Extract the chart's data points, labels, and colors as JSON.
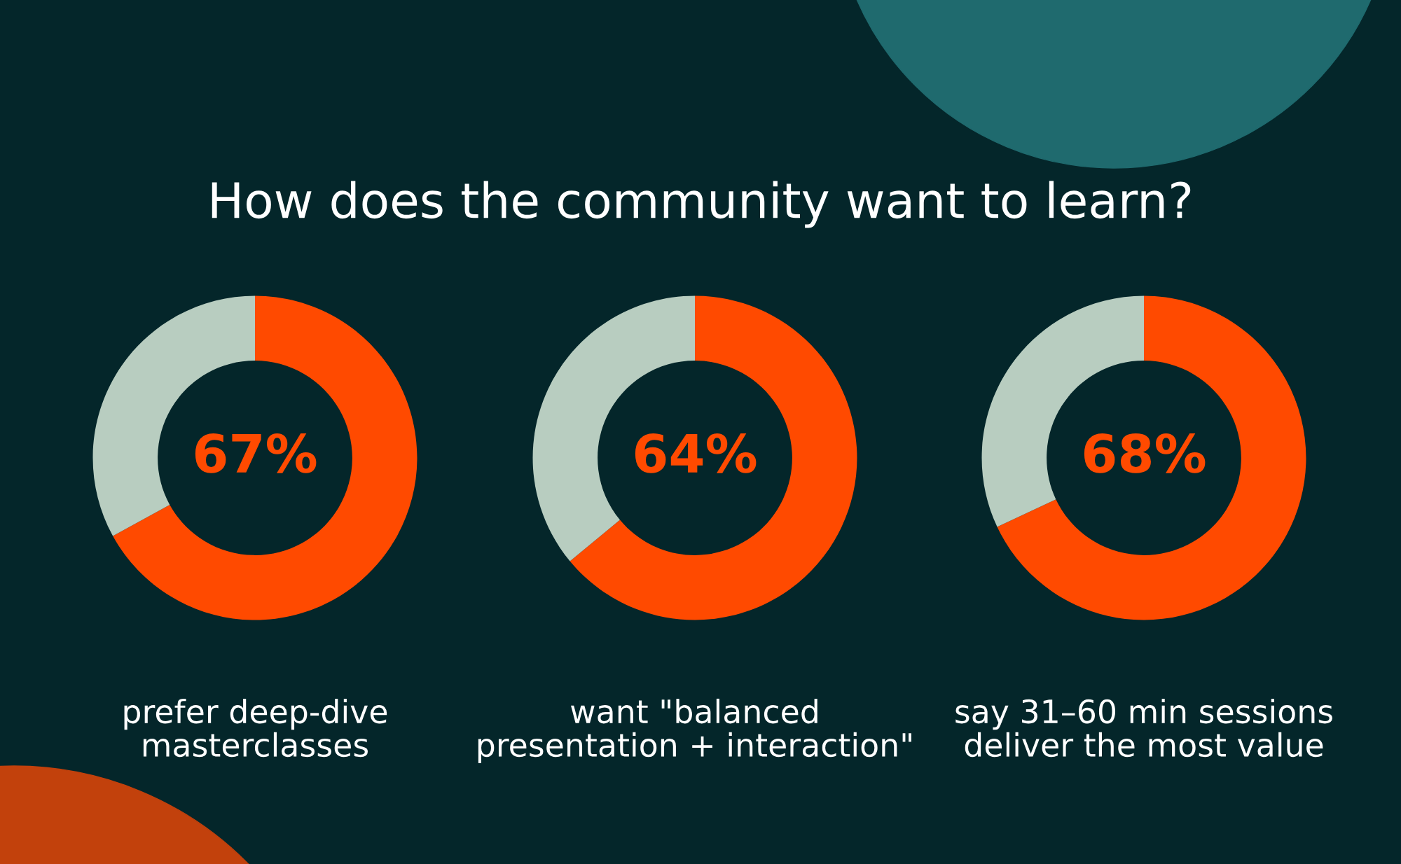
{
  "chart_data": [
    {
      "type": "donut",
      "title": "How does the community want to learn?",
      "categories": [
        null,
        null
      ],
      "values": [
        67,
        33
      ],
      "colors": [
        "#ff4a00",
        "#b8cdc0"
      ],
      "value_labels": [
        "67%",
        null
      ],
      "xlabel": "prefer deep-dive\nmasterclasses"
    },
    {
      "type": "donut",
      "categories": [
        null,
        null
      ],
      "values": [
        64,
        36
      ],
      "colors": [
        "#ff4a00",
        "#b8cdc0"
      ],
      "value_labels": [
        "64%",
        null
      ],
      "xlabel": "want \"balanced\npresentation + interaction\""
    },
    {
      "type": "donut",
      "categories": [
        null,
        null
      ],
      "values": [
        68,
        32
      ],
      "colors": [
        "#ff4a00",
        "#b8cdc0"
      ],
      "value_labels": [
        "68%",
        null
      ],
      "xlabel": "say 31–60 min sessions\ndeliver the most value"
    }
  ]
}
